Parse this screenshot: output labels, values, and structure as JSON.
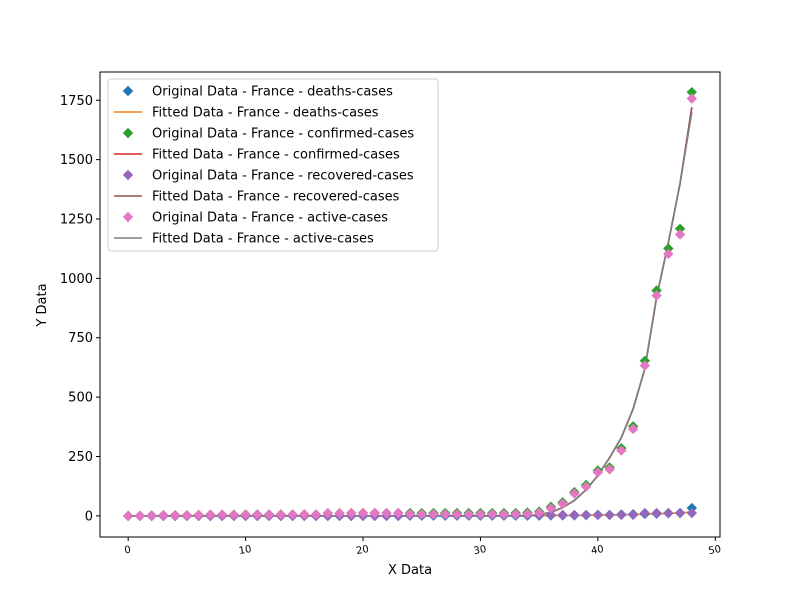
{
  "chart_data": {
    "type": "line",
    "title": "",
    "xlabel": "X Data",
    "ylabel": "Y Data",
    "xlim": [
      -2.4,
      50.4
    ],
    "ylim": [
      -89,
      1869
    ],
    "xticks": [
      0,
      10,
      20,
      30,
      40,
      50
    ],
    "xtick_labels": [
      "0",
      "10",
      "20",
      "30",
      "40",
      "50"
    ],
    "yticks": [
      0,
      250,
      500,
      750,
      1000,
      1250,
      1500,
      1750
    ],
    "ytick_labels": [
      "0",
      "250",
      "500",
      "750",
      "1000",
      "1250",
      "1500",
      "1750"
    ],
    "grid": false,
    "legend_position": "upper-left",
    "x": [
      0,
      1,
      2,
      3,
      4,
      5,
      6,
      7,
      8,
      9,
      10,
      11,
      12,
      13,
      14,
      15,
      16,
      17,
      18,
      19,
      20,
      21,
      22,
      23,
      24,
      25,
      26,
      27,
      28,
      29,
      30,
      31,
      32,
      33,
      34,
      35,
      36,
      37,
      38,
      39,
      40,
      41,
      42,
      43,
      44,
      45,
      46,
      47,
      48
    ],
    "series": [
      {
        "name": "Original Data - France - deaths-cases",
        "kind": "scatter",
        "marker": "diamond",
        "color": "#1f77b4",
        "values": [
          0,
          0,
          0,
          0,
          0,
          0,
          0,
          0,
          0,
          0,
          0,
          0,
          0,
          0,
          0,
          0,
          0,
          0,
          0,
          0,
          0,
          0,
          0,
          0,
          1,
          1,
          1,
          1,
          1,
          1,
          1,
          1,
          1,
          1,
          1,
          1,
          2,
          2,
          2,
          3,
          4,
          4,
          6,
          7,
          8,
          9,
          11,
          12,
          33
        ]
      },
      {
        "name": "Fitted Data - France - deaths-cases",
        "kind": "line",
        "color": "#ff7f0e",
        "values": [
          0,
          0,
          0,
          0,
          0,
          0,
          0,
          0,
          0,
          0,
          0,
          0,
          0,
          0,
          0,
          0,
          0,
          0,
          0,
          0,
          0,
          0,
          0,
          0,
          0,
          0,
          0,
          0,
          0,
          0,
          0.5,
          0.5,
          0.6,
          0.7,
          0.8,
          1,
          1.2,
          1.5,
          1.9,
          2.4,
          3,
          3.7,
          4.6,
          5.7,
          7,
          8.6,
          10.5,
          13,
          16
        ]
      },
      {
        "name": "Original Data - France - confirmed-cases",
        "kind": "scatter",
        "marker": "diamond",
        "color": "#2ca02c",
        "values": [
          0,
          0,
          2,
          3,
          3,
          3,
          4,
          5,
          5,
          5,
          6,
          6,
          6,
          6,
          6,
          6,
          6,
          11,
          11,
          12,
          12,
          12,
          12,
          12,
          12,
          12,
          12,
          12,
          12,
          12,
          12,
          12,
          12,
          12,
          14,
          18,
          38,
          57,
          100,
          130,
          191,
          204,
          285,
          377,
          653,
          949,
          1126,
          1209,
          1784
        ]
      },
      {
        "name": "Fitted Data - France - confirmed-cases",
        "kind": "line",
        "color": "#d62728",
        "values": [
          0,
          0,
          0,
          0,
          0,
          0,
          0,
          0,
          0,
          0,
          0,
          0,
          0,
          0,
          0,
          0,
          0,
          0,
          0,
          0,
          0,
          0,
          0,
          0,
          0,
          0,
          0,
          0,
          0,
          0,
          0,
          0,
          0,
          0,
          0,
          5,
          15,
          35,
          65,
          110,
          170,
          245,
          330,
          450,
          620,
          920,
          1150,
          1400,
          1720
        ]
      },
      {
        "name": "Original Data - France - recovered-cases",
        "kind": "scatter",
        "marker": "diamond",
        "color": "#9467bd",
        "values": [
          0,
          0,
          0,
          0,
          0,
          0,
          0,
          0,
          0,
          0,
          0,
          0,
          0,
          0,
          0,
          0,
          0,
          0,
          0,
          0,
          0,
          0,
          0,
          0,
          4,
          4,
          4,
          4,
          4,
          4,
          4,
          4,
          4,
          4,
          4,
          4,
          4,
          4,
          4,
          4,
          4,
          4,
          4,
          4,
          12,
          12,
          12,
          12,
          12
        ]
      },
      {
        "name": "Fitted Data - France - recovered-cases",
        "kind": "line",
        "color": "#8c564b",
        "values": [
          0,
          0,
          0,
          0,
          0,
          0,
          0,
          0,
          0,
          0,
          0,
          0,
          0,
          0,
          0,
          0,
          0,
          0,
          0,
          0,
          0,
          0,
          0,
          0,
          0,
          0,
          0,
          0,
          0,
          0,
          0,
          0,
          0,
          0,
          0,
          5,
          15,
          35,
          65,
          110,
          170,
          245,
          330,
          450,
          620,
          920,
          1150,
          1400,
          1720
        ]
      },
      {
        "name": "Original Data - France - active-cases",
        "kind": "scatter",
        "marker": "diamond",
        "color": "#e377c2",
        "values": [
          0,
          0,
          2,
          3,
          3,
          3,
          4,
          5,
          5,
          5,
          6,
          6,
          6,
          6,
          6,
          6,
          6,
          11,
          11,
          12,
          12,
          12,
          12,
          12,
          7,
          7,
          7,
          7,
          7,
          7,
          7,
          7,
          7,
          7,
          9,
          13,
          32,
          51,
          94,
          123,
          183,
          196,
          275,
          366,
          633,
          928,
          1103,
          1185,
          1757
        ]
      },
      {
        "name": "Fitted Data - France - active-cases",
        "kind": "line",
        "color": "#7f7f7f",
        "values": [
          0,
          0,
          0,
          0,
          0,
          0,
          0,
          0,
          0,
          0,
          0,
          0,
          0,
          0,
          0,
          0,
          0,
          0,
          0,
          0,
          0,
          0,
          0,
          0,
          0,
          0,
          0,
          0,
          0,
          0,
          0,
          0,
          0,
          0,
          0,
          5,
          15,
          35,
          65,
          110,
          170,
          245,
          330,
          450,
          620,
          920,
          1150,
          1400,
          1700
        ]
      }
    ]
  }
}
